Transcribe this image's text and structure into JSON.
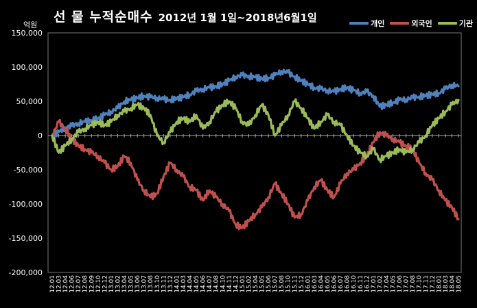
{
  "chart_data": {
    "type": "line",
    "title": "선 물 누적순매수",
    "subtitle": "2012년 1월 1일~2018년6월1일",
    "ylabel": "억원",
    "xlabel": "",
    "ylim": [
      -200000,
      150000
    ],
    "yticks": [
      150000,
      100000,
      50000,
      0,
      -50000,
      -100000,
      -150000,
      -200000
    ],
    "ytick_labels": [
      "150,000",
      "100,000",
      "50,000",
      "0",
      "-50,000",
      "-100,000",
      "-150,000",
      "-200,000"
    ],
    "grid": false,
    "legend_position": "top-right",
    "x": [
      "12.01",
      "12.03",
      "12.04",
      "12.06",
      "12.07",
      "12.08",
      "12.09",
      "12.10",
      "12.12",
      "13.01",
      "13.02",
      "13.04",
      "13.05",
      "13.06",
      "13.07",
      "13.08",
      "13.10",
      "13.11",
      "13.12",
      "14.01",
      "14.03",
      "14.04",
      "14.05",
      "14.06",
      "14.07",
      "14.08",
      "14.10",
      "14.11",
      "14.12",
      "15.01",
      "15.02",
      "15.04",
      "15.05",
      "15.06",
      "15.07",
      "15.08",
      "15.10",
      "15.11",
      "15.12",
      "16.01",
      "16.03",
      "16.04",
      "16.05",
      "16.06",
      "16.07",
      "16.08",
      "16.10",
      "16.11",
      "16.12",
      "17.01",
      "17.02",
      "17.04",
      "17.05",
      "17.06",
      "17.07",
      "17.08",
      "17.10",
      "17.11",
      "17.12",
      "18.01",
      "18.03",
      "18.04",
      "18.05"
    ],
    "series": [
      {
        "name": "개인",
        "color": "#4f81bd",
        "values": [
          0,
          5000,
          12000,
          14000,
          18000,
          20000,
          22000,
          25000,
          30000,
          35000,
          40000,
          50000,
          52000,
          55000,
          58000,
          56000,
          55000,
          53000,
          52000,
          54000,
          56000,
          60000,
          65000,
          68000,
          70000,
          72000,
          75000,
          80000,
          86000,
          88000,
          87000,
          85000,
          83000,
          84000,
          88000,
          94000,
          92000,
          86000,
          80000,
          75000,
          70000,
          68000,
          66000,
          64000,
          68000,
          70000,
          66000,
          62000,
          64000,
          58000,
          42000,
          45000,
          48000,
          52000,
          53000,
          55000,
          57000,
          58000,
          60000,
          62000,
          68000,
          74000,
          72000
        ]
      },
      {
        "name": "외국인",
        "color": "#c0504d",
        "values": [
          0,
          20000,
          10000,
          -5000,
          -15000,
          -20000,
          -25000,
          -30000,
          -40000,
          -50000,
          -45000,
          -30000,
          -40000,
          -65000,
          -80000,
          -90000,
          -85000,
          -60000,
          -40000,
          -50000,
          -60000,
          -75000,
          -80000,
          -95000,
          -80000,
          -90000,
          -100000,
          -110000,
          -130000,
          -135000,
          -125000,
          -115000,
          -105000,
          -90000,
          -70000,
          -85000,
          -100000,
          -120000,
          -115000,
          -95000,
          -75000,
          -65000,
          -80000,
          -90000,
          -70000,
          -55000,
          -50000,
          -40000,
          -30000,
          -10000,
          5000,
          0,
          -5000,
          -10000,
          -15000,
          -20000,
          -40000,
          -55000,
          -65000,
          -80000,
          -95000,
          -105000,
          -122000
        ]
      },
      {
        "name": "기관",
        "color": "#9bbb59",
        "values": [
          0,
          -25000,
          -15000,
          -5000,
          5000,
          10000,
          15000,
          20000,
          15000,
          20000,
          30000,
          35000,
          40000,
          45000,
          40000,
          30000,
          0,
          -10000,
          5000,
          20000,
          25000,
          20000,
          30000,
          10000,
          20000,
          35000,
          45000,
          50000,
          40000,
          20000,
          15000,
          30000,
          45000,
          30000,
          0,
          15000,
          30000,
          50000,
          40000,
          25000,
          10000,
          20000,
          30000,
          20000,
          15000,
          0,
          -15000,
          -25000,
          -30000,
          -20000,
          -35000,
          -30000,
          -25000,
          -20000,
          -25000,
          -20000,
          -10000,
          0,
          15000,
          25000,
          35000,
          45000,
          52000
        ]
      }
    ]
  }
}
